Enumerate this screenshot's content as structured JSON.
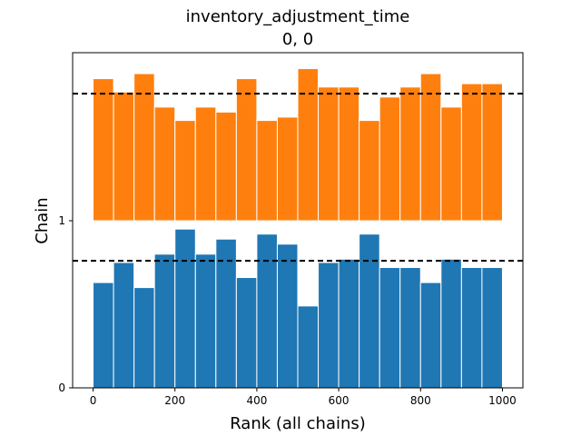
{
  "chart_data": {
    "type": "bar",
    "title": "inventory_adjustment_time",
    "subtitle": "0, 0",
    "xlabel": "Rank (all chains)",
    "ylabel": "Chain",
    "xlim": [
      -50,
      1050
    ],
    "x_ticks": [
      0,
      200,
      400,
      600,
      800,
      1000
    ],
    "y_ticks": [
      {
        "value": 0,
        "label": "0"
      },
      {
        "value": 1,
        "label": "1"
      }
    ],
    "bin_edges": [
      0,
      50,
      100,
      150,
      200,
      250,
      300,
      350,
      400,
      450,
      500,
      550,
      600,
      650,
      700,
      750,
      800,
      850,
      900,
      950,
      1000
    ],
    "reference_level": 0.76,
    "series": [
      {
        "chain": 0,
        "color": "#1f77b4",
        "values": [
          0.63,
          0.75,
          0.6,
          0.8,
          0.95,
          0.8,
          0.89,
          0.66,
          0.92,
          0.86,
          0.49,
          0.75,
          0.77,
          0.92,
          0.72,
          0.72,
          0.63,
          0.77,
          0.72,
          0.72
        ]
      },
      {
        "chain": 1,
        "color": "#ff7f0e",
        "values": [
          0.85,
          0.77,
          0.88,
          0.68,
          0.6,
          0.68,
          0.65,
          0.85,
          0.6,
          0.62,
          0.91,
          0.8,
          0.8,
          0.6,
          0.74,
          0.8,
          0.88,
          0.68,
          0.82,
          0.82
        ]
      }
    ],
    "grid": false,
    "legend": "none"
  }
}
